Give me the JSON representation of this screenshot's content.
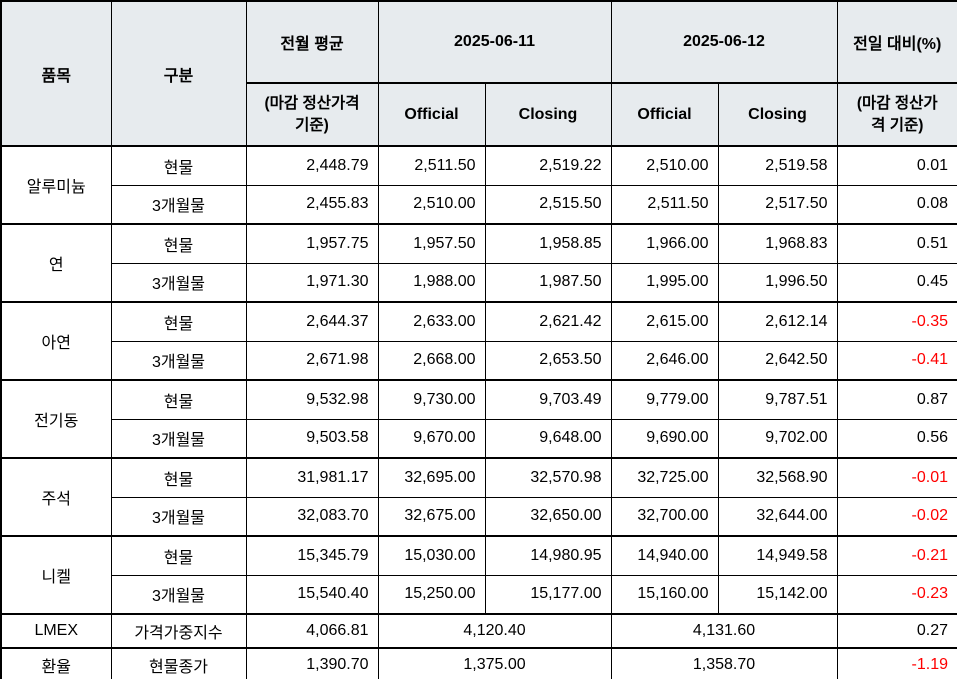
{
  "table": {
    "header": {
      "item": "품목",
      "category": "구분",
      "prev_month_avg": "전월 평균",
      "prev_month_avg_sub": "(마감 정산가격 기준)",
      "date1": "2025-06-11",
      "date2": "2025-06-12",
      "official": "Official",
      "closing": "Closing",
      "dod": "전일 대비(%)",
      "dod_sub": "(마감 정산가격 기준)"
    },
    "groups": [
      {
        "item": "알루미늄",
        "rows": [
          {
            "category": "현물",
            "prev_avg": "2,448.79",
            "d1_official": "2,511.50",
            "d1_closing": "2,519.22",
            "d2_official": "2,510.00",
            "d2_closing": "2,519.58",
            "dod": "0.01"
          },
          {
            "category": "3개월물",
            "prev_avg": "2,455.83",
            "d1_official": "2,510.00",
            "d1_closing": "2,515.50",
            "d2_official": "2,511.50",
            "d2_closing": "2,517.50",
            "dod": "0.08"
          }
        ]
      },
      {
        "item": "연",
        "rows": [
          {
            "category": "현물",
            "prev_avg": "1,957.75",
            "d1_official": "1,957.50",
            "d1_closing": "1,958.85",
            "d2_official": "1,966.00",
            "d2_closing": "1,968.83",
            "dod": "0.51"
          },
          {
            "category": "3개월물",
            "prev_avg": "1,971.30",
            "d1_official": "1,988.00",
            "d1_closing": "1,987.50",
            "d2_official": "1,995.00",
            "d2_closing": "1,996.50",
            "dod": "0.45"
          }
        ]
      },
      {
        "item": "아연",
        "rows": [
          {
            "category": "현물",
            "prev_avg": "2,644.37",
            "d1_official": "2,633.00",
            "d1_closing": "2,621.42",
            "d2_official": "2,615.00",
            "d2_closing": "2,612.14",
            "dod": "-0.35"
          },
          {
            "category": "3개월물",
            "prev_avg": "2,671.98",
            "d1_official": "2,668.00",
            "d1_closing": "2,653.50",
            "d2_official": "2,646.00",
            "d2_closing": "2,642.50",
            "dod": "-0.41"
          }
        ]
      },
      {
        "item": "전기동",
        "rows": [
          {
            "category": "현물",
            "prev_avg": "9,532.98",
            "d1_official": "9,730.00",
            "d1_closing": "9,703.49",
            "d2_official": "9,779.00",
            "d2_closing": "9,787.51",
            "dod": "0.87"
          },
          {
            "category": "3개월물",
            "prev_avg": "9,503.58",
            "d1_official": "9,670.00",
            "d1_closing": "9,648.00",
            "d2_official": "9,690.00",
            "d2_closing": "9,702.00",
            "dod": "0.56"
          }
        ]
      },
      {
        "item": "주석",
        "rows": [
          {
            "category": "현물",
            "prev_avg": "31,981.17",
            "d1_official": "32,695.00",
            "d1_closing": "32,570.98",
            "d2_official": "32,725.00",
            "d2_closing": "32,568.90",
            "dod": "-0.01"
          },
          {
            "category": "3개월물",
            "prev_avg": "32,083.70",
            "d1_official": "32,675.00",
            "d1_closing": "32,650.00",
            "d2_official": "32,700.00",
            "d2_closing": "32,644.00",
            "dod": "-0.02"
          }
        ]
      },
      {
        "item": "니켈",
        "rows": [
          {
            "category": "현물",
            "prev_avg": "15,345.79",
            "d1_official": "15,030.00",
            "d1_closing": "14,980.95",
            "d2_official": "14,940.00",
            "d2_closing": "14,949.58",
            "dod": "-0.21"
          },
          {
            "category": "3개월물",
            "prev_avg": "15,540.40",
            "d1_official": "15,250.00",
            "d1_closing": "15,177.00",
            "d2_official": "15,160.00",
            "d2_closing": "15,142.00",
            "dod": "-0.23"
          }
        ]
      }
    ],
    "summary_rows": [
      {
        "item": "LMEX",
        "category": "가격가중지수",
        "prev_avg": "4,066.81",
        "d1": "4,120.40",
        "d2": "4,131.60",
        "dod": "0.27"
      },
      {
        "item": "환율",
        "category": "현물종가",
        "prev_avg": "1,390.70",
        "d1": "1,375.00",
        "d2": "1,358.70",
        "dod": "-1.19"
      }
    ]
  },
  "colors": {
    "negative": "#ff0000",
    "header_bg": "#e7ebee",
    "border": "#000000"
  }
}
